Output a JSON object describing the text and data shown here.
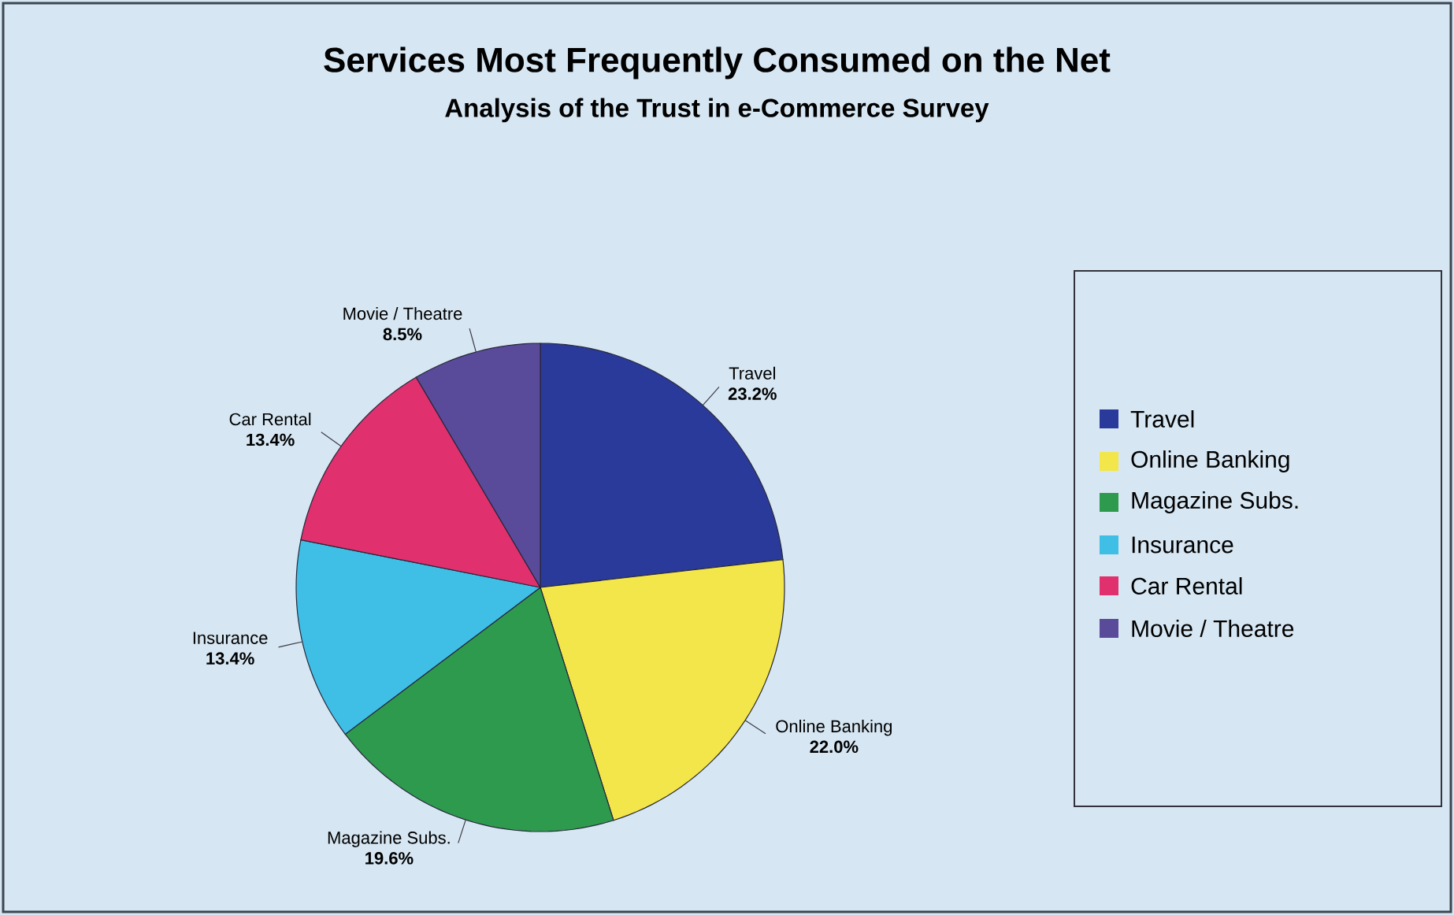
{
  "chart_data": {
    "type": "pie",
    "title": "Services Most Frequently Consumed on the Net",
    "subtitle": "Analysis of the Trust in e-Commerce Survey",
    "categories": [
      "Travel",
      "Online Banking",
      "Magazine Subs.",
      "Insurance",
      "Car Rental",
      "Movie / Theatre"
    ],
    "values": [
      23.2,
      22.0,
      19.6,
      13.4,
      13.4,
      8.5
    ],
    "value_labels": [
      "23.2%",
      "22.0%",
      "19.6%",
      "13.4%",
      "13.4%",
      "8.5%"
    ],
    "colors": [
      "#2a3a9a",
      "#f3e64a",
      "#2e9a4e",
      "#3fbfe6",
      "#e0306e",
      "#5a4a9a"
    ],
    "legend": "right"
  }
}
